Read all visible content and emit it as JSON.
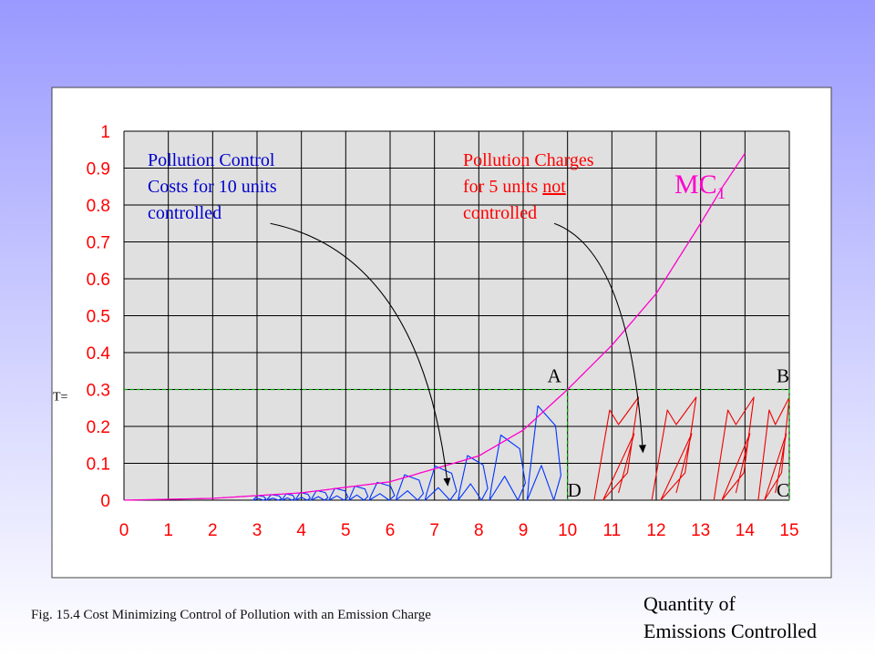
{
  "colors": {
    "plot_bg": "#e0e0e0",
    "grid": "#000000",
    "mc_curve": "#ff00cc",
    "control_text": "#0000cc",
    "control_shading": "#0033ff",
    "charge_text": "#ff0000",
    "charge_shading": "#ee0000",
    "tick_labels_x": "#ff0000",
    "tick_labels_y": "#ff0000",
    "dashed_lines": "#00aa00"
  },
  "chart_data": {
    "type": "line",
    "xlim": [
      0,
      15
    ],
    "ylim": [
      0,
      1
    ],
    "x_ticks": [
      "0",
      "1",
      "2",
      "3",
      "4",
      "5",
      "6",
      "7",
      "8",
      "9",
      "10",
      "11",
      "12",
      "13",
      "14",
      "15"
    ],
    "y_ticks": [
      "0",
      "0.1",
      "0.2",
      "0.3",
      "0.4",
      "0.5",
      "0.6",
      "0.7",
      "0.8",
      "0.9",
      "1"
    ],
    "grid": true,
    "series": [
      {
        "name": "MC1",
        "x": [
          0,
          2,
          4,
          6,
          8,
          9,
          10,
          11,
          12,
          13,
          13.5,
          14
        ],
        "y": [
          0,
          0.005,
          0.02,
          0.05,
          0.12,
          0.19,
          0.3,
          0.42,
          0.56,
          0.75,
          0.85,
          0.94
        ]
      }
    ],
    "emission_charge": {
      "label": "T=",
      "value": 0.3,
      "x_from": 0,
      "x_to": 15
    },
    "points": [
      {
        "label": "A",
        "x": 10,
        "y": 0.3
      },
      {
        "label": "B",
        "x": 15,
        "y": 0.3
      },
      {
        "label": "C",
        "x": 15,
        "y": 0
      },
      {
        "label": "D",
        "x": 10,
        "y": 0
      }
    ],
    "mc_label": {
      "text": "MC",
      "subscript": "1"
    },
    "annotations": [
      {
        "lines": [
          "Pollution  Control",
          "Costs for 10 units",
          "controlled"
        ],
        "arrow_from": [
          3.3,
          0.75
        ],
        "arrow_to": [
          7.3,
          0.04
        ]
      },
      {
        "lines": [
          "Pollution Charges",
          "for 5 units not",
          "controlled"
        ],
        "arrow_from": [
          9.7,
          0.75
        ],
        "arrow_to": [
          11.7,
          0.13
        ]
      }
    ]
  },
  "caption": "Fig. 15.4  Cost Minimizing Control of Pollution with an Emission Charge",
  "x_axis_title": [
    "Quantity of",
    "Emissions Controlled"
  ]
}
